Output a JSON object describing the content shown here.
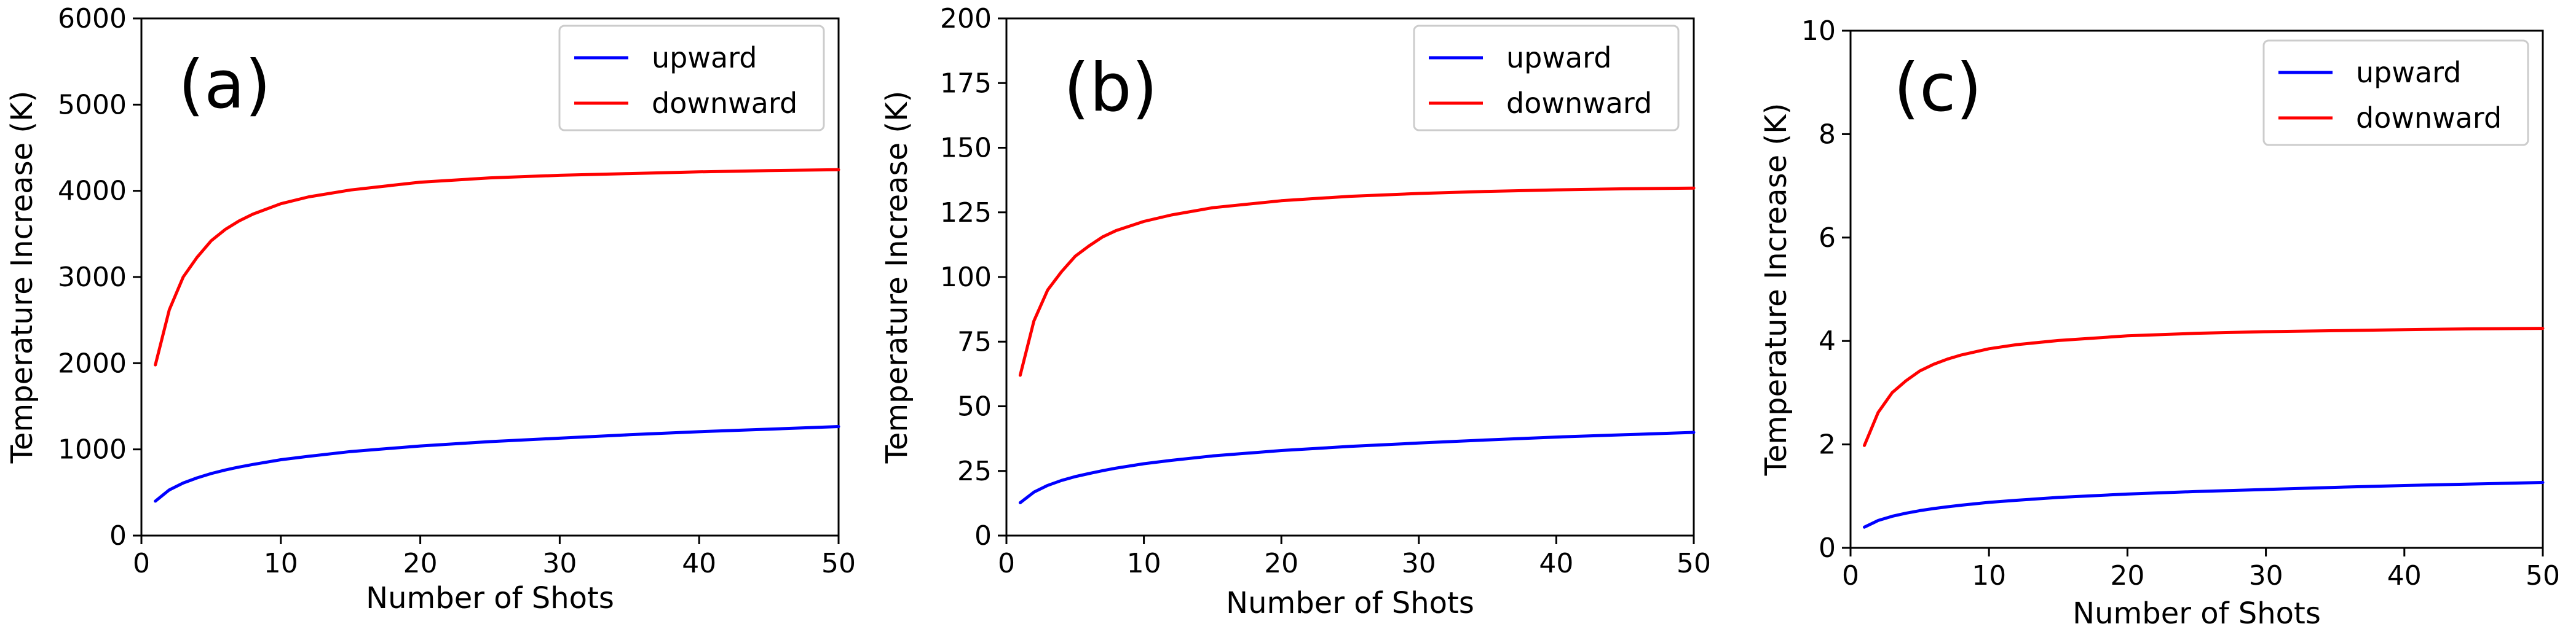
{
  "chart_data": [
    {
      "type": "line",
      "annotation": "(a)",
      "xlabel": "Number of Shots",
      "ylabel": "Temperature Increase (K)",
      "xlim": [
        0,
        50
      ],
      "ylim": [
        0,
        6000
      ],
      "xticks": [
        0,
        10,
        20,
        30,
        40,
        50
      ],
      "yticks": [
        0,
        1000,
        2000,
        3000,
        4000,
        5000,
        6000
      ],
      "legend_position": "top-right",
      "grid": false,
      "x": [
        1,
        2,
        3,
        4,
        5,
        6,
        7,
        8,
        10,
        12,
        15,
        20,
        25,
        30,
        35,
        40,
        45,
        50
      ],
      "series": [
        {
          "name": "upward",
          "color": "#0000ff",
          "values": [
            400,
            530,
            610,
            670,
            720,
            760,
            795,
            825,
            880,
            920,
            975,
            1040,
            1090,
            1130,
            1170,
            1205,
            1235,
            1265
          ]
        },
        {
          "name": "downward",
          "color": "#ff0000",
          "values": [
            1980,
            2620,
            3000,
            3230,
            3420,
            3550,
            3650,
            3730,
            3850,
            3930,
            4010,
            4100,
            4150,
            4180,
            4200,
            4220,
            4235,
            4245
          ]
        }
      ]
    },
    {
      "type": "line",
      "annotation": "(b)",
      "xlabel": "Number of Shots",
      "ylabel": "Temperature Increase (K)",
      "xlim": [
        0,
        50
      ],
      "ylim": [
        0,
        200
      ],
      "xticks": [
        0,
        10,
        20,
        30,
        40,
        50
      ],
      "yticks": [
        0,
        25,
        50,
        75,
        100,
        125,
        150,
        175,
        200
      ],
      "legend_position": "top-right",
      "grid": false,
      "x": [
        1,
        2,
        3,
        4,
        5,
        6,
        7,
        8,
        10,
        12,
        15,
        20,
        25,
        30,
        35,
        40,
        45,
        50
      ],
      "series": [
        {
          "name": "upward",
          "color": "#0000ff",
          "values": [
            12.7,
            16.8,
            19.4,
            21.3,
            22.8,
            24.0,
            25.1,
            26.1,
            27.8,
            29.1,
            30.8,
            32.9,
            34.5,
            35.8,
            37.0,
            38.1,
            39.0,
            39.9
          ]
        },
        {
          "name": "downward",
          "color": "#ff0000",
          "values": [
            62,
            83,
            95,
            102,
            108,
            112,
            115.5,
            118,
            121.5,
            124,
            126.8,
            129.5,
            131.2,
            132.3,
            133.1,
            133.7,
            134.1,
            134.4
          ]
        }
      ]
    },
    {
      "type": "line",
      "annotation": "(c)",
      "xlabel": "Number of Shots",
      "ylabel": "Temperature Increase (K)",
      "xlim": [
        0,
        50
      ],
      "ylim": [
        0,
        10
      ],
      "xticks": [
        0,
        10,
        20,
        30,
        40,
        50
      ],
      "yticks": [
        0,
        2,
        4,
        6,
        8,
        10
      ],
      "legend_position": "top-right",
      "grid": false,
      "x": [
        1,
        2,
        3,
        4,
        5,
        6,
        7,
        8,
        10,
        12,
        15,
        20,
        25,
        30,
        35,
        40,
        45,
        50
      ],
      "series": [
        {
          "name": "upward",
          "color": "#0000ff",
          "values": [
            0.4,
            0.53,
            0.61,
            0.67,
            0.72,
            0.76,
            0.795,
            0.825,
            0.88,
            0.92,
            0.975,
            1.04,
            1.09,
            1.13,
            1.17,
            1.205,
            1.235,
            1.265
          ]
        },
        {
          "name": "downward",
          "color": "#ff0000",
          "values": [
            1.98,
            2.62,
            3.0,
            3.23,
            3.42,
            3.55,
            3.65,
            3.73,
            3.85,
            3.93,
            4.01,
            4.1,
            4.15,
            4.18,
            4.2,
            4.22,
            4.235,
            4.245
          ]
        }
      ]
    }
  ]
}
